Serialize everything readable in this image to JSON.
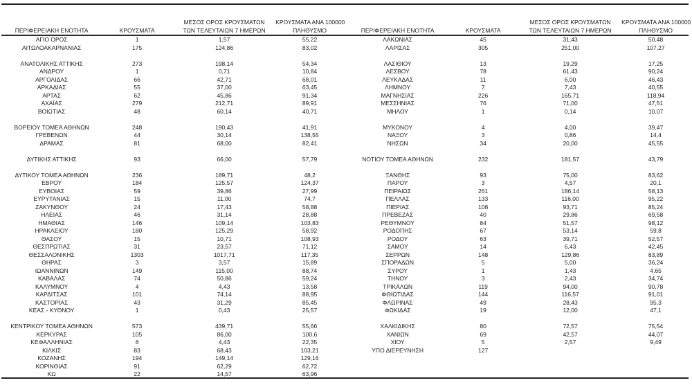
{
  "columns": {
    "region": "ΠΕΡΙΦΕΡΕΙΑΚΗ ΕΝΟΤΗΤΑ",
    "cases": "ΚΡΟΥΣΜΑΤΑ",
    "avg7_line1": "ΜΕΣΟΣ ΟΡΟΣ ΚΡΟΥΣΜΑΤΩΝ",
    "avg7_line2": "ΤΩΝ ΤΕΛΕΥΤΑΙΩΝ 7 ΗΜΕΡΩΝ",
    "per100k_line1": "ΚΡΟΥΣΜΑΤΑ ΑΝΑ 100000",
    "per100k_line2": "ΠΛΗΘΥΣΜΟ"
  },
  "left_table": {
    "groups": [
      [
        [
          "ΑΓΙΟ ΟΡΟΣ",
          "1",
          "1,57",
          "55,22"
        ],
        [
          "ΑΙΤΩΛΟΑΚΑΡΝΑΝΙΑΣ",
          "175",
          "124,86",
          "83,02"
        ]
      ],
      [
        [
          "ΑΝΑΤΟΛΙΚΗΣ ΑΤΤΙΚΗΣ",
          "273",
          "198,14",
          "54,34"
        ],
        [
          "ΑΝΔΡΟΥ",
          "1",
          "0,71",
          "10,84"
        ],
        [
          "ΑΡΓΟΛΙΔΑΣ",
          "66",
          "42,71",
          "68,01"
        ],
        [
          "ΑΡΚΑΔΙΑΣ",
          "55",
          "37,00",
          "63,45"
        ],
        [
          "ΑΡΤΑΣ",
          "62",
          "45,86",
          "91,34"
        ],
        [
          "ΑΧΑΪΑΣ",
          "279",
          "212,71",
          "89,91"
        ],
        [
          "ΒΟΙΩΤΙΑΣ",
          "48",
          "60,14",
          "40,71"
        ]
      ],
      [
        [
          "ΒΟΡΕΙΟΥ ΤΟΜΕΑ ΑΘΗΝΩΝ",
          "248",
          "190,43",
          "41,91"
        ],
        [
          "ΓΡΕΒΕΝΩΝ",
          "44",
          "30,14",
          "138,55"
        ],
        [
          "ΔΡΑΜΑΣ",
          "81",
          "68,00",
          "82,41"
        ]
      ],
      [
        [
          "ΔΥΤΙΚΗΣ ΑΤΤΙΚΗΣ",
          "93",
          "66,00",
          "57,79"
        ]
      ],
      [
        [
          "ΔΥΤΙΚΟΥ ΤΟΜΕΑ ΑΘΗΝΩΝ",
          "236",
          "189,71",
          "48,2"
        ],
        [
          "ΕΒΡΟΥ",
          "184",
          "125,57",
          "124,37"
        ],
        [
          "ΕΥΒΟΙΑΣ",
          "59",
          "39,86",
          "27,99"
        ],
        [
          "ΕΥΡΥΤΑΝΙΑΣ",
          "15",
          "11,00",
          "74,7"
        ],
        [
          "ΖΑΚΥΝΘΟΥ",
          "24",
          "17,43",
          "58,88"
        ],
        [
          "ΗΛΕΙΑΣ",
          "46",
          "31,14",
          "28,88"
        ],
        [
          "ΗΜΑΘΙΑΣ",
          "146",
          "109,14",
          "103,83"
        ],
        [
          "ΗΡΑΚΛΕΙΟΥ",
          "180",
          "125,29",
          "58,92"
        ],
        [
          "ΘΑΣΟΥ",
          "15",
          "10,71",
          "108,93"
        ],
        [
          "ΘΕΣΠΡΩΤΙΑΣ",
          "31",
          "23,57",
          "71,12"
        ],
        [
          "ΘΕΣΣΑΛΟΝΙΚΗΣ",
          "1303",
          "1017,71",
          "117,35"
        ],
        [
          "ΘΗΡΑΣ",
          "3",
          "3,57",
          "15,89"
        ],
        [
          "ΙΩΑΝΝΙΝΩΝ",
          "149",
          "115,00",
          "88,74"
        ],
        [
          "ΚΑΒΑΛΑΣ",
          "74",
          "50,86",
          "59,24"
        ],
        [
          "ΚΑΛΥΜΝΟΥ",
          "4",
          "4,43",
          "13,58"
        ],
        [
          "ΚΑΡΔΙΤΣΑΣ",
          "101",
          "74,14",
          "88,95"
        ],
        [
          "ΚΑΣΤΟΡΙΑΣ",
          "43",
          "31,29",
          "85,45"
        ],
        [
          "ΚΕΑΣ - ΚΥΘΝΟΥ",
          "1",
          "0,43",
          "25,57"
        ]
      ],
      [
        [
          "ΚΕΝΤΡΙΚΟΥ ΤΟΜΕΑ ΑΘΗΝΩΝ",
          "573",
          "439,71",
          "55,66"
        ],
        [
          "ΚΕΡΚΥΡΑΣ",
          "105",
          "86,00",
          "100,6"
        ],
        [
          "ΚΕΦΑΛΛΗΝΙΑΣ",
          "8",
          "4,43",
          "22,35"
        ],
        [
          "ΚΙΛΚΙΣ",
          "83",
          "68,43",
          "103,21"
        ],
        [
          "ΚΟΖΑΝΗΣ",
          "194",
          "149,14",
          "129,16"
        ],
        [
          "ΚΟΡΙΝΘΙΑΣ",
          "91",
          "62,29",
          "62,72"
        ],
        [
          "ΚΩ",
          "22",
          "14,57",
          "63,96"
        ]
      ]
    ]
  },
  "right_table": {
    "groups": [
      [
        [
          "ΛΑΚΩΝΙΑΣ",
          "45",
          "31,43",
          "50,48"
        ],
        [
          "ΛΑΡΙΣΑΣ",
          "305",
          "251,00",
          "107,27"
        ]
      ],
      [
        [
          "ΛΑΣΙΘΙΟΥ",
          "13",
          "19,29",
          "17,25"
        ],
        [
          "ΛΕΣΒΟΥ",
          "78",
          "61,43",
          "90,24"
        ],
        [
          "ΛΕΥΚΑΔΑΣ",
          "11",
          "6,00",
          "46,43"
        ],
        [
          "ΛΗΜΝΟΥ",
          "7",
          "7,43",
          "40,55"
        ],
        [
          "ΜΑΓΝΗΣΙΑΣ",
          "226",
          "165,71",
          "118,94"
        ],
        [
          "ΜΕΣΣΗΝΙΑΣ",
          "76",
          "71,00",
          "47,51"
        ],
        [
          "ΜΗΛΟΥ",
          "1",
          "0,14",
          "10,07"
        ]
      ],
      [
        [
          "ΜΥΚΟΝΟΥ",
          "4",
          "4,00",
          "39,47"
        ],
        [
          "ΝΑΞΟΥ",
          "3",
          "0,86",
          "14,4"
        ],
        [
          "ΝΗΣΩΝ",
          "34",
          "20,00",
          "45,55"
        ]
      ],
      [
        [
          "ΝΟΤΙΟΥ ΤΟΜΕΑ ΑΘΗΝΩΝ",
          "232",
          "181,57",
          "43,79"
        ]
      ],
      [
        [
          "ΞΑΝΘΗΣ",
          "93",
          "75,00",
          "83,62"
        ],
        [
          "ΠΑΡΟΥ",
          "3",
          "4,57",
          "20,1"
        ],
        [
          "ΠΕΙΡΑΙΩΣ",
          "261",
          "186,14",
          "58,13"
        ],
        [
          "ΠΕΛΛΑΣ",
          "133",
          "116,00",
          "95,22"
        ],
        [
          "ΠΙΕΡΙΑΣ",
          "108",
          "93,71",
          "85,24"
        ],
        [
          "ΠΡΕΒΕΖΑΣ",
          "40",
          "29,86",
          "69,58"
        ],
        [
          "ΡΕΘΥΜΝΟΥ",
          "84",
          "51,57",
          "98,12"
        ],
        [
          "ΡΟΔΟΠΗΣ",
          "67",
          "53,14",
          "59,8"
        ],
        [
          "ΡΟΔΟΥ",
          "63",
          "39,71",
          "52,57"
        ],
        [
          "ΣΑΜΟΥ",
          "14",
          "6,43",
          "42,45"
        ],
        [
          "ΣΕΡΡΩΝ",
          "148",
          "129,86",
          "83,89"
        ],
        [
          "ΣΠΟΡΑΔΩΝ",
          "5",
          "5,00",
          "36,24"
        ],
        [
          "ΣΥΡΟΥ",
          "1",
          "1,43",
          "4,65"
        ],
        [
          "ΤΗΝΟΥ",
          "3",
          "2,43",
          "34,74"
        ],
        [
          "ΤΡΙΚΑΛΩΝ",
          "119",
          "94,00",
          "90,78"
        ],
        [
          "ΦΘΙΩΤΙΔΑΣ",
          "144",
          "116,57",
          "91,01"
        ],
        [
          "ΦΛΩΡΙΝΑΣ",
          "49",
          "28,43",
          "95,3"
        ],
        [
          "ΦΩΚΙΔΑΣ",
          "19",
          "12,00",
          "47,1"
        ]
      ],
      [
        [
          "ΧΑΛΚΙΔΙΚΗΣ",
          "80",
          "72,57",
          "75,54"
        ],
        [
          "ΧΑΝΙΩΝ",
          "69",
          "42,57",
          "44,07"
        ],
        [
          "ΧΙΟΥ",
          "5",
          "2,57",
          "9,49"
        ],
        [
          "ΥΠΟ ΔΙΕΡΕΥΝΗΣΗ",
          "127",
          "",
          ""
        ]
      ]
    ]
  }
}
